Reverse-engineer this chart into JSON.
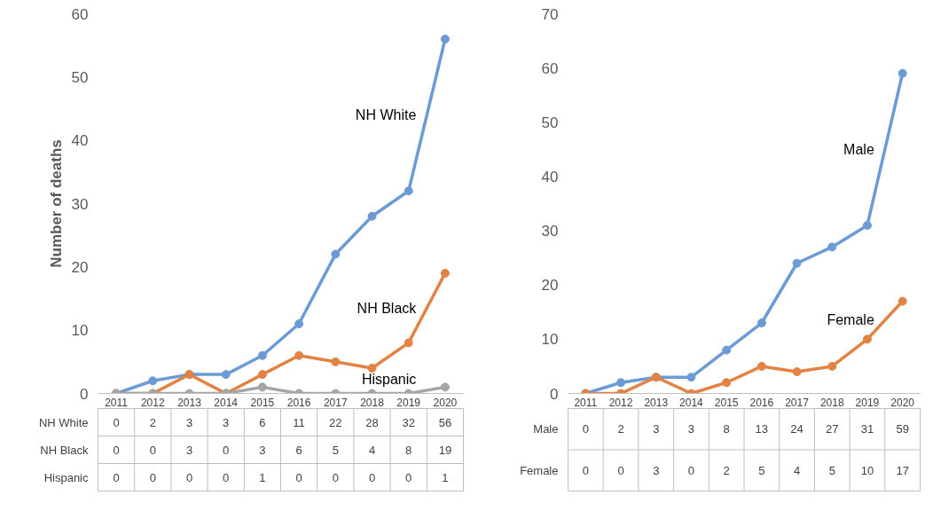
{
  "chart_data": [
    {
      "type": "line",
      "ylabel": "Number of deaths",
      "categories": [
        "2011",
        "2012",
        "2013",
        "2014",
        "2015",
        "2016",
        "2017",
        "2018",
        "2019",
        "2020"
      ],
      "ylim": [
        0,
        60
      ],
      "yticks": [
        0,
        10,
        20,
        30,
        40,
        50,
        60
      ],
      "grid": false,
      "marker": "circle",
      "line_style": "solid",
      "data_labels": true,
      "series": [
        {
          "name": "NH White",
          "color": "#6b9bd6",
          "values": [
            0,
            2,
            3,
            3,
            6,
            11,
            22,
            28,
            32,
            56
          ]
        },
        {
          "name": "NH Black",
          "color": "#e38343",
          "values": [
            0,
            0,
            3,
            0,
            3,
            6,
            5,
            4,
            8,
            19
          ]
        },
        {
          "name": "Hispanic",
          "color": "#a5a5a5",
          "values": [
            0,
            0,
            0,
            0,
            1,
            0,
            0,
            0,
            0,
            1
          ]
        }
      ]
    },
    {
      "type": "line",
      "categories": [
        "2011",
        "2012",
        "2013",
        "2014",
        "2015",
        "2016",
        "2017",
        "2018",
        "2019",
        "2020"
      ],
      "ylim": [
        0,
        70
      ],
      "yticks": [
        0,
        10,
        20,
        30,
        40,
        50,
        60,
        70
      ],
      "grid": false,
      "marker": "circle",
      "line_style": "solid",
      "data_labels": true,
      "series": [
        {
          "name": "Male",
          "color": "#6b9bd6",
          "values": [
            0,
            2,
            3,
            3,
            8,
            13,
            24,
            27,
            31,
            59
          ]
        },
        {
          "name": "Female",
          "color": "#e38343",
          "values": [
            0,
            0,
            3,
            0,
            2,
            5,
            4,
            5,
            10,
            17
          ]
        }
      ]
    }
  ]
}
